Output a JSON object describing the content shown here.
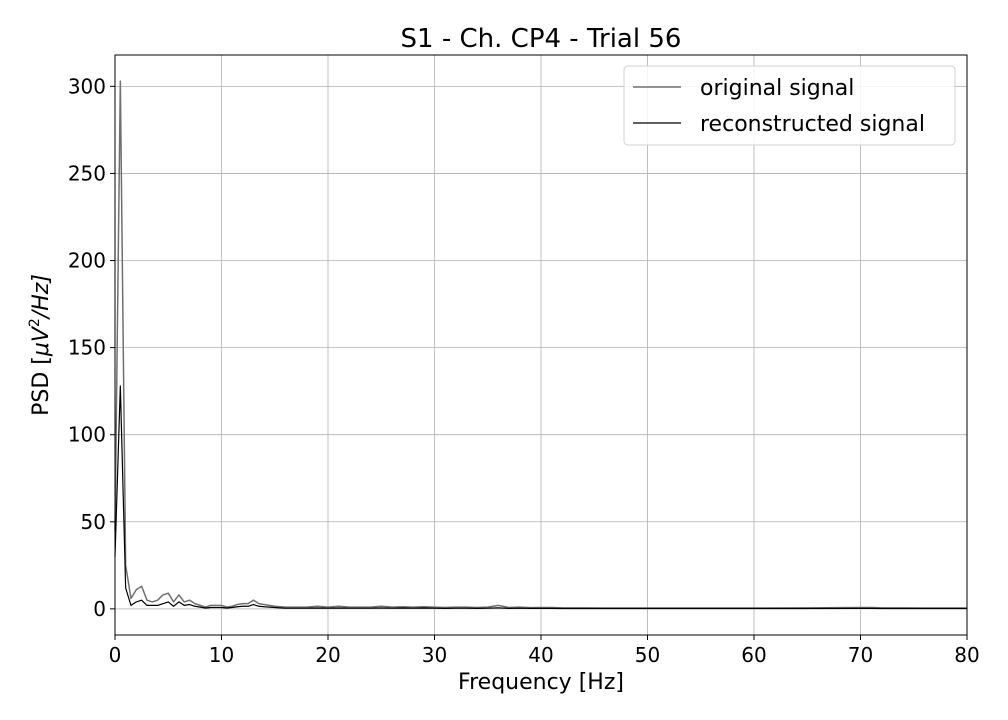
{
  "chart_data": {
    "type": "line",
    "title": "S1 - Ch. CP4 - Trial 56",
    "xlabel": "Frequency [Hz]",
    "ylabel_prefix": "PSD [",
    "ylabel_mu": "μ",
    "ylabel_v": "V",
    "ylabel_exp": "2",
    "ylabel_suffix": "/Hz]",
    "xlim": [
      0,
      80
    ],
    "ylim": [
      -15,
      318
    ],
    "xticks": [
      0,
      10,
      20,
      30,
      40,
      50,
      60,
      70,
      80
    ],
    "yticks": [
      0,
      50,
      100,
      150,
      200,
      250,
      300
    ],
    "grid": true,
    "legend_position": "top-right",
    "series": [
      {
        "name": "original signal",
        "color": "#707070",
        "x": [
          0,
          0.5,
          1,
          1.5,
          2,
          2.5,
          3,
          3.5,
          4,
          4.5,
          5,
          5.5,
          6,
          6.5,
          7,
          7.5,
          8,
          8.5,
          9,
          9.5,
          10,
          10.5,
          11,
          11.5,
          12,
          12.5,
          13,
          13.5,
          14,
          15,
          16,
          17,
          18,
          19,
          20,
          21,
          22,
          23,
          24,
          25,
          26,
          27,
          28,
          29,
          30,
          31,
          32,
          33,
          34,
          35,
          36,
          37,
          38,
          39,
          40,
          41,
          42,
          44,
          46,
          48,
          50,
          55,
          60,
          65,
          70,
          71,
          72,
          74,
          76,
          78,
          80
        ],
        "y": [
          45,
          303,
          25,
          6,
          11,
          13,
          5,
          4,
          5,
          8,
          9,
          4,
          8,
          4,
          5,
          3,
          2,
          1,
          2,
          2,
          2,
          1,
          1.5,
          2.5,
          3,
          3,
          5,
          3,
          2.5,
          1.5,
          1,
          1,
          1,
          1.5,
          1,
          1.5,
          1,
          1,
          1,
          1.5,
          1,
          1.2,
          1,
          1.2,
          1,
          0.8,
          1,
          1,
          0.8,
          1,
          2,
          0.8,
          1,
          0.7,
          0.8,
          0.8,
          0.6,
          0.6,
          0.5,
          0.5,
          0.5,
          0.5,
          0.5,
          0.6,
          0.8,
          0.8,
          0.6,
          0.6,
          0.5,
          0.5,
          0.5
        ]
      },
      {
        "name": "reconstructed signal",
        "color": "#000000",
        "x": [
          0,
          0.5,
          1,
          1.5,
          2,
          2.5,
          3,
          3.5,
          4,
          4.5,
          5,
          5.5,
          6,
          6.5,
          7,
          7.5,
          8,
          8.5,
          9,
          9.5,
          10,
          10.5,
          11,
          11.5,
          12,
          12.5,
          13,
          13.5,
          14,
          15,
          16,
          17,
          18,
          19,
          20,
          21,
          22,
          23,
          24,
          25,
          26,
          27,
          28,
          29,
          30,
          31,
          32,
          33,
          34,
          35,
          36,
          37,
          38,
          39,
          40,
          41,
          42,
          44,
          46,
          48,
          50,
          55,
          60,
          65,
          70,
          71,
          72,
          74,
          76,
          78,
          80
        ],
        "y": [
          30,
          128,
          12,
          2,
          4,
          5,
          2,
          2,
          2,
          3,
          4,
          1.5,
          4,
          2,
          2.5,
          1.5,
          1,
          0.5,
          0.8,
          0.8,
          0.8,
          0.5,
          0.8,
          1.2,
          1.5,
          1.5,
          2.5,
          1.5,
          1.2,
          0.8,
          0.4,
          0.4,
          0.4,
          0.5,
          0.4,
          0.5,
          0.4,
          0.4,
          0.4,
          0.5,
          0.4,
          0.5,
          0.4,
          0.5,
          0.4,
          0.3,
          0.4,
          0.4,
          0.3,
          0.4,
          0.6,
          0.3,
          0.4,
          0.3,
          0.3,
          0.3,
          0.2,
          0.2,
          0.2,
          0.2,
          0.2,
          0.2,
          0.2,
          0.2,
          0.3,
          0.3,
          0.2,
          0.2,
          0.2,
          0.2,
          0.2
        ]
      }
    ]
  }
}
